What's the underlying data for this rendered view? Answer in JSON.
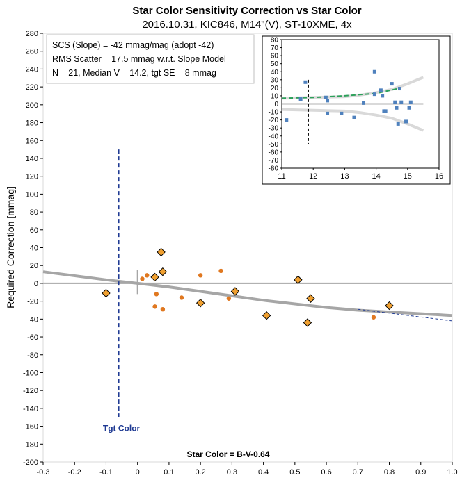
{
  "chart_data": {
    "type": "scatter",
    "title": "Star Color Sensitivity Correction vs Star Color",
    "subtitle": "2016.10.31, KIC846, M14\"(V), ST-10XME, 4x",
    "ylabel": "Required Correction [mmag]",
    "xlabel_annotation": "Star Color = B-V-0.64",
    "target_label": "Tgt Color",
    "stats_lines": [
      "SCS (Slope)  =  -42 mmag/mag (adopt -42)",
      "RMS Scatter = 17.5 mmag w.r.t. Slope Model",
      "N = 21,  Median V = 14.2, tgt SE = 8 mmag"
    ],
    "xlim": [
      -0.3,
      1.0
    ],
    "ylim": [
      -200,
      280
    ],
    "x_ticks": [
      "-0.3",
      "-0.2",
      "-0.1",
      "0",
      "0.1",
      "0.2",
      "0.3",
      "0.4",
      "0.5",
      "0.6",
      "0.7",
      "0.8",
      "0.9",
      "1.0"
    ],
    "y_ticks": [
      "-200",
      "-180",
      "-160",
      "-140",
      "-120",
      "-100",
      "-80",
      "-60",
      "-40",
      "-20",
      "0",
      "20",
      "40",
      "60",
      "80",
      "100",
      "120",
      "140",
      "160",
      "180",
      "200",
      "220",
      "240",
      "260",
      "280"
    ],
    "target_x": -0.06,
    "target_y_range": [
      -150,
      150
    ],
    "diamond_points": [
      {
        "x": -0.1,
        "y": -11
      },
      {
        "x": 0.055,
        "y": 7
      },
      {
        "x": 0.075,
        "y": 35
      },
      {
        "x": 0.08,
        "y": 13
      },
      {
        "x": 0.2,
        "y": -22
      },
      {
        "x": 0.31,
        "y": -9
      },
      {
        "x": 0.41,
        "y": -36
      },
      {
        "x": 0.51,
        "y": 4
      },
      {
        "x": 0.54,
        "y": -44
      },
      {
        "x": 0.55,
        "y": -17
      },
      {
        "x": 0.8,
        "y": -25
      }
    ],
    "dot_points": [
      {
        "x": 0.015,
        "y": 5
      },
      {
        "x": 0.03,
        "y": 9
      },
      {
        "x": 0.055,
        "y": -26
      },
      {
        "x": 0.06,
        "y": -12
      },
      {
        "x": 0.08,
        "y": -29
      },
      {
        "x": 0.14,
        "y": -16
      },
      {
        "x": 0.2,
        "y": 9
      },
      {
        "x": 0.265,
        "y": 14
      },
      {
        "x": 0.29,
        "y": -17
      },
      {
        "x": 0.75,
        "y": -38
      }
    ],
    "trend_curve": [
      {
        "x": -0.3,
        "y": 13
      },
      {
        "x": -0.1,
        "y": 4
      },
      {
        "x": 0.0,
        "y": 0
      },
      {
        "x": 0.1,
        "y": -4
      },
      {
        "x": 0.2,
        "y": -9
      },
      {
        "x": 0.3,
        "y": -14
      },
      {
        "x": 0.4,
        "y": -19
      },
      {
        "x": 0.5,
        "y": -23
      },
      {
        "x": 0.6,
        "y": -27
      },
      {
        "x": 0.7,
        "y": -30
      },
      {
        "x": 0.8,
        "y": -32
      },
      {
        "x": 0.9,
        "y": -34
      },
      {
        "x": 1.0,
        "y": -36
      }
    ],
    "slope_line": [
      {
        "x": 0.7,
        "y": -29
      },
      {
        "x": 1.0,
        "y": -42
      }
    ],
    "colors": {
      "diamond_fill": "#f0a030",
      "dot_fill": "#e07820",
      "trend": "#a6a6a6",
      "target_line": "#1f3a93",
      "inset_points": "#4f81bd",
      "inset_green": "#2ca05a"
    },
    "inset": {
      "xlim": [
        11,
        16
      ],
      "ylim": [
        -80,
        80
      ],
      "x_ticks": [
        "11",
        "12",
        "13",
        "14",
        "15",
        "16"
      ],
      "y_ticks": [
        "-80",
        "-70",
        "-60",
        "-50",
        "-40",
        "-30",
        "-20",
        "-10",
        "0",
        "10",
        "20",
        "30",
        "40",
        "50",
        "60",
        "70",
        "80"
      ],
      "vline_x": 11.85,
      "vline_y_range": [
        -50,
        30
      ],
      "points": [
        {
          "x": 11.15,
          "y": -20
        },
        {
          "x": 11.6,
          "y": 6
        },
        {
          "x": 11.75,
          "y": 27
        },
        {
          "x": 12.4,
          "y": 8
        },
        {
          "x": 12.45,
          "y": 4
        },
        {
          "x": 12.45,
          "y": -12
        },
        {
          "x": 12.9,
          "y": -12
        },
        {
          "x": 13.3,
          "y": -17
        },
        {
          "x": 13.6,
          "y": 1
        },
        {
          "x": 13.95,
          "y": 40
        },
        {
          "x": 13.95,
          "y": 12
        },
        {
          "x": 14.15,
          "y": 17
        },
        {
          "x": 14.2,
          "y": 10
        },
        {
          "x": 14.25,
          "y": -9
        },
        {
          "x": 14.3,
          "y": -9
        },
        {
          "x": 14.5,
          "y": 25
        },
        {
          "x": 14.6,
          "y": 2
        },
        {
          "x": 14.65,
          "y": -5
        },
        {
          "x": 14.7,
          "y": -25
        },
        {
          "x": 14.75,
          "y": 19
        },
        {
          "x": 14.8,
          "y": 2
        },
        {
          "x": 14.95,
          "y": -22
        },
        {
          "x": 15.05,
          "y": -5
        },
        {
          "x": 15.1,
          "y": 2
        }
      ],
      "upper_band": [
        {
          "x": 11,
          "y": 7
        },
        {
          "x": 12,
          "y": 8
        },
        {
          "x": 13,
          "y": 9
        },
        {
          "x": 13.5,
          "y": 11
        },
        {
          "x": 14,
          "y": 14
        },
        {
          "x": 14.5,
          "y": 18
        },
        {
          "x": 15,
          "y": 25
        },
        {
          "x": 15.5,
          "y": 33
        }
      ],
      "lower_band": [
        {
          "x": 11,
          "y": -7
        },
        {
          "x": 12,
          "y": -8
        },
        {
          "x": 13,
          "y": -9
        },
        {
          "x": 13.5,
          "y": -11
        },
        {
          "x": 14,
          "y": -14
        },
        {
          "x": 14.5,
          "y": -18
        },
        {
          "x": 15,
          "y": -25
        },
        {
          "x": 15.5,
          "y": -33
        }
      ],
      "zero_line": [
        {
          "x": 11,
          "y": 0
        },
        {
          "x": 15.5,
          "y": 0
        }
      ],
      "green_line": [
        {
          "x": 11,
          "y": 7
        },
        {
          "x": 12,
          "y": 8
        },
        {
          "x": 13,
          "y": 10
        },
        {
          "x": 14,
          "y": 13
        },
        {
          "x": 14.8,
          "y": 20
        }
      ]
    }
  }
}
